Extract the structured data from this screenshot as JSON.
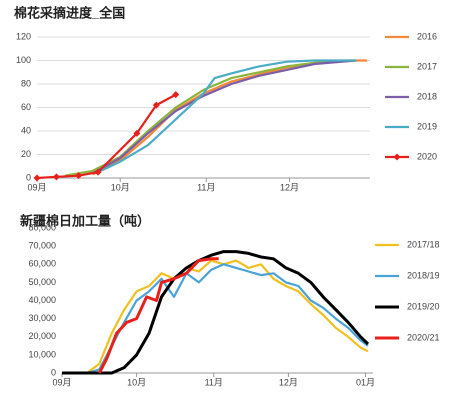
{
  "chart_data": [
    {
      "type": "line",
      "title": "棉花采摘进度_全国",
      "xlim": [
        0,
        120
      ],
      "xticks": [
        {
          "value": 0,
          "label": "09月"
        },
        {
          "value": 30,
          "label": "10月"
        },
        {
          "value": 61,
          "label": "11月"
        },
        {
          "value": 91,
          "label": "12月"
        }
      ],
      "ylim": [
        0,
        120
      ],
      "yticks": [
        0,
        20,
        40,
        60,
        80,
        100,
        120
      ],
      "grid": true,
      "legend": "right",
      "series": [
        {
          "name": "2016",
          "color": "#f4883a",
          "x": [
            20,
            30,
            40,
            50,
            60,
            70,
            80,
            90,
            100,
            110,
            119
          ],
          "values": [
            3,
            15,
            35,
            58,
            72,
            82,
            88,
            94,
            98,
            100,
            100
          ]
        },
        {
          "name": "2017",
          "color": "#8cb43c",
          "x": [
            10,
            20,
            30,
            40,
            50,
            60,
            70,
            80,
            90,
            100,
            115
          ],
          "values": [
            2,
            6,
            18,
            40,
            60,
            75,
            85,
            90,
            95,
            98,
            100
          ]
        },
        {
          "name": "2018",
          "color": "#7b5ea7",
          "x": [
            20,
            30,
            40,
            50,
            60,
            70,
            80,
            90,
            100,
            115
          ],
          "values": [
            4,
            17,
            38,
            57,
            70,
            80,
            87,
            92,
            97,
            100
          ]
        },
        {
          "name": "2019",
          "color": "#4bacc6",
          "x": [
            22,
            30,
            40,
            50,
            60,
            64,
            70,
            80,
            90,
            100,
            115
          ],
          "values": [
            5,
            14,
            28,
            50,
            72,
            85,
            89,
            95,
            99,
            100,
            100
          ]
        },
        {
          "name": "2020",
          "color": "#e8201c",
          "markers": "diamond",
          "x": [
            0,
            7,
            15,
            22,
            36,
            43,
            50
          ],
          "values": [
            0,
            1,
            2,
            5,
            38,
            62,
            71
          ]
        }
      ]
    },
    {
      "type": "line",
      "title": "新疆棉日加工量（吨）",
      "xlim": [
        0,
        125
      ],
      "xticks": [
        {
          "value": 0,
          "label": "09月"
        },
        {
          "value": 30,
          "label": "10月"
        },
        {
          "value": 61,
          "label": "11月"
        },
        {
          "value": 91,
          "label": "12月"
        },
        {
          "value": 122,
          "label": "01月"
        }
      ],
      "ylim": [
        0,
        80000
      ],
      "yticks": [
        0,
        {
          "value": 10000,
          "label": "10,000"
        },
        {
          "value": 20000,
          "label": "20,000"
        },
        {
          "value": 30000,
          "label": "30,000"
        },
        {
          "value": 40000,
          "label": "40,000"
        },
        {
          "value": 50000,
          "label": "50,000"
        },
        {
          "value": 60000,
          "label": "60,000"
        },
        {
          "value": 70000,
          "label": "70,000"
        },
        {
          "value": 80000,
          "label": "80,000"
        }
      ],
      "grid": false,
      "legend": "right",
      "series": [
        {
          "name": "2017/18",
          "color": "#f0c020",
          "x": [
            10,
            15,
            20,
            25,
            30,
            35,
            40,
            45,
            50,
            55,
            60,
            65,
            70,
            75,
            80,
            85,
            90,
            95,
            100,
            105,
            110,
            115,
            120,
            123
          ],
          "values": [
            0,
            5000,
            22000,
            35000,
            45000,
            48000,
            55000,
            52000,
            58000,
            56000,
            62000,
            60000,
            62000,
            58000,
            60000,
            52000,
            48000,
            45000,
            38000,
            32000,
            25000,
            20000,
            14000,
            12000
          ]
        },
        {
          "name": "2018/19",
          "color": "#4aa3d8",
          "x": [
            10,
            15,
            20,
            25,
            30,
            35,
            40,
            45,
            50,
            55,
            60,
            65,
            70,
            75,
            80,
            85,
            90,
            95,
            100,
            105,
            110,
            115,
            120,
            123
          ],
          "values": [
            0,
            2000,
            15000,
            28000,
            40000,
            45000,
            52000,
            42000,
            55000,
            50000,
            57000,
            60000,
            58000,
            56000,
            54000,
            55000,
            50000,
            48000,
            40000,
            36000,
            30000,
            25000,
            18000,
            15000
          ]
        },
        {
          "name": "2019/20",
          "color": "#000000",
          "width": 3,
          "x": [
            0,
            20,
            25,
            30,
            35,
            40,
            45,
            50,
            55,
            60,
            65,
            70,
            75,
            80,
            85,
            90,
            95,
            100,
            105,
            110,
            115,
            120,
            123
          ],
          "values": [
            0,
            0,
            3000,
            10000,
            22000,
            42000,
            52000,
            58000,
            62000,
            65000,
            67000,
            67000,
            66000,
            64000,
            63000,
            58000,
            55000,
            50000,
            42000,
            35000,
            28000,
            20000,
            16000
          ]
        },
        {
          "name": "2020/21",
          "color": "#e8201c",
          "width": 3,
          "x": [
            15,
            18,
            22,
            26,
            30,
            34,
            38,
            40,
            45,
            50,
            55,
            60,
            63
          ],
          "values": [
            0,
            8000,
            22000,
            28000,
            30000,
            42000,
            40000,
            50000,
            52000,
            55000,
            62000,
            63000,
            63000
          ]
        }
      ]
    }
  ]
}
